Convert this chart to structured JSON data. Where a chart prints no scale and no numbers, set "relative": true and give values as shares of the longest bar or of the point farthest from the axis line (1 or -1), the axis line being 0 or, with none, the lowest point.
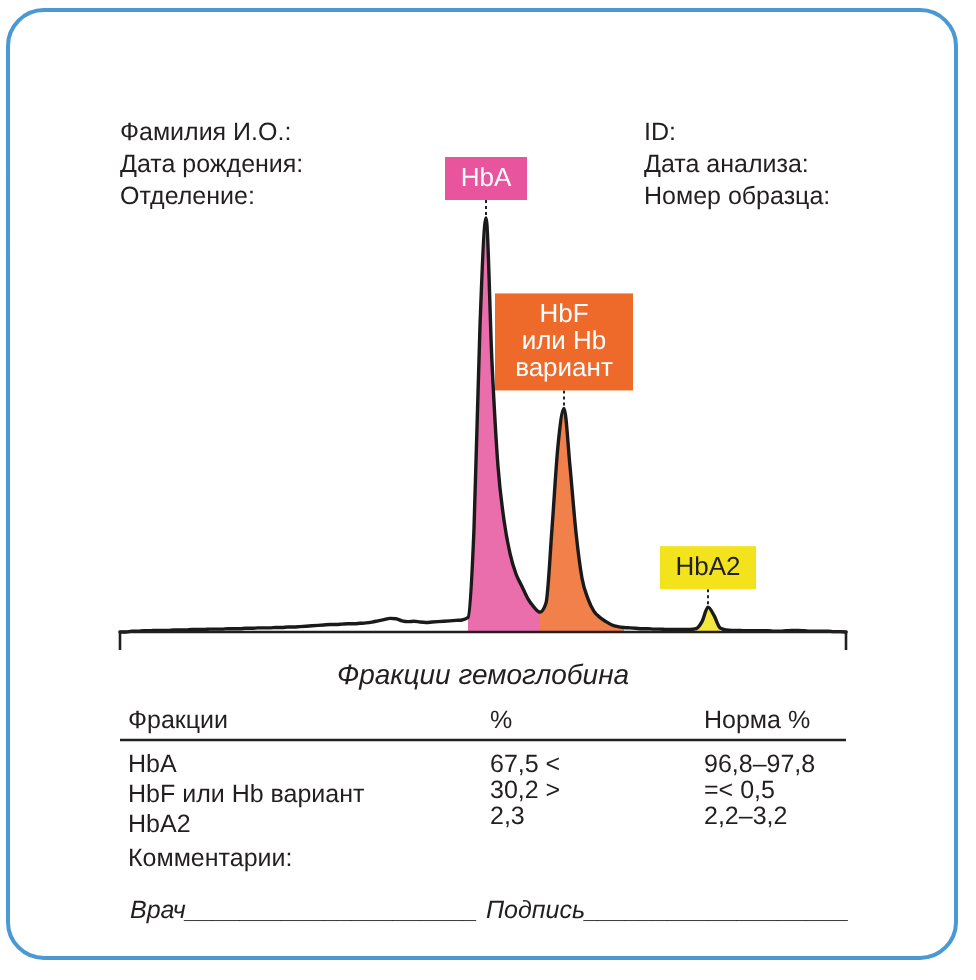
{
  "chart_data": {
    "type": "line",
    "relative": true,
    "categories": [
      null,
      null,
      null,
      null,
      null,
      null,
      null,
      null,
      null,
      null,
      null,
      null,
      null,
      null,
      null,
      null,
      null,
      null,
      null,
      null,
      null,
      null,
      null,
      null,
      null,
      null,
      null,
      null,
      null,
      null,
      null,
      null,
      null,
      null,
      null,
      null,
      null,
      null,
      null,
      null,
      null,
      null,
      null,
      null,
      null,
      null,
      null,
      null,
      null,
      null,
      null,
      null,
      null,
      null,
      null,
      null,
      null,
      null,
      null,
      null,
      null,
      null,
      null,
      null,
      null,
      null,
      null,
      null,
      null,
      null,
      null,
      null,
      null,
      null,
      null,
      null,
      null,
      null,
      null,
      null,
      null,
      null,
      null,
      null,
      null,
      null,
      null,
      null,
      null,
      null,
      null,
      null,
      null,
      null,
      null,
      null,
      null,
      null,
      null,
      null,
      null,
      null,
      null,
      null,
      null,
      null,
      null,
      null,
      null,
      null,
      null,
      null,
      null,
      null,
      null,
      null,
      null,
      null,
      null,
      null,
      null,
      null
    ],
    "series": [
      {
        "type": "area",
        "name": "HbA",
        "color": "#e8559e",
        "values": [
          null,
          null,
          null,
          null,
          null,
          null,
          null,
          null,
          null,
          null,
          null,
          null,
          null,
          null,
          null,
          null,
          null,
          null,
          null,
          null,
          null,
          null,
          null,
          null,
          null,
          null,
          null,
          null,
          null,
          null,
          null,
          null,
          null,
          null,
          null,
          null,
          null,
          null,
          null,
          null,
          null,
          null,
          null,
          null,
          null,
          null,
          null,
          null,
          null,
          null,
          null,
          null,
          null,
          null,
          null,
          null,
          null,
          null,
          0.035,
          0.25,
          0.74,
          1,
          0.65,
          0.4,
          0.27,
          0.19,
          0.14,
          0.11,
          0.08,
          0.06,
          0.048,
          null,
          null,
          null,
          null,
          null,
          null,
          null,
          null,
          null,
          null,
          null,
          null,
          null,
          null,
          null,
          null,
          null,
          null,
          null,
          null,
          null,
          null,
          null,
          null,
          null,
          null,
          null,
          null,
          null,
          null,
          null,
          null,
          null,
          null,
          null,
          null,
          null,
          null,
          null,
          null,
          null,
          null,
          null,
          null,
          null,
          null,
          null,
          null,
          null,
          null,
          null
        ]
      },
      {
        "type": "area",
        "name": "HbF или Hb вариант",
        "color": "#ee6a2a",
        "values": [
          null,
          null,
          null,
          null,
          null,
          null,
          null,
          null,
          null,
          null,
          null,
          null,
          null,
          null,
          null,
          null,
          null,
          null,
          null,
          null,
          null,
          null,
          null,
          null,
          null,
          null,
          null,
          null,
          null,
          null,
          null,
          null,
          null,
          null,
          null,
          null,
          null,
          null,
          null,
          null,
          null,
          null,
          null,
          null,
          null,
          null,
          null,
          null,
          null,
          null,
          null,
          null,
          null,
          null,
          null,
          null,
          null,
          null,
          null,
          null,
          null,
          null,
          null,
          null,
          null,
          null,
          null,
          null,
          null,
          null,
          0.048,
          0.07,
          0.25,
          0.45,
          0.54,
          0.4,
          0.24,
          0.13,
          0.08,
          0.05,
          0.035,
          0.025,
          0.017,
          0.013,
          0.011,
          null,
          null,
          null,
          null,
          null,
          null,
          null,
          null,
          null,
          null,
          null,
          null,
          null,
          null,
          null,
          null,
          null,
          null,
          null,
          null,
          null,
          null,
          null,
          null,
          null,
          null,
          null,
          null,
          null,
          null,
          null,
          null,
          null,
          null,
          null,
          null,
          null
        ]
      },
      {
        "type": "area",
        "name": "HbA2",
        "color": "#f2e31c",
        "values": [
          null,
          null,
          null,
          null,
          null,
          null,
          null,
          null,
          null,
          null,
          null,
          null,
          null,
          null,
          null,
          null,
          null,
          null,
          null,
          null,
          null,
          null,
          null,
          null,
          null,
          null,
          null,
          null,
          null,
          null,
          null,
          null,
          null,
          null,
          null,
          null,
          null,
          null,
          null,
          null,
          null,
          null,
          null,
          null,
          null,
          null,
          null,
          null,
          null,
          null,
          null,
          null,
          null,
          null,
          null,
          null,
          null,
          null,
          null,
          null,
          null,
          null,
          null,
          null,
          null,
          null,
          null,
          null,
          null,
          null,
          null,
          null,
          null,
          null,
          null,
          null,
          null,
          null,
          null,
          null,
          null,
          null,
          null,
          null,
          null,
          null,
          null,
          null,
          null,
          null,
          null,
          null,
          null,
          null,
          null,
          null,
          0.008,
          0.025,
          0.06,
          0.04,
          0.01,
          null,
          null,
          null,
          null,
          null,
          null,
          null,
          null,
          null,
          null,
          null,
          null,
          null,
          null,
          null,
          null,
          null,
          null,
          null,
          null,
          null
        ]
      },
      {
        "color": "#1a1a1a",
        "values": [
          0,
          0,
          0.002,
          0.002,
          0.003,
          0.003,
          0.004,
          0.004,
          0.004,
          0.005,
          0.005,
          0.005,
          0.006,
          0.006,
          0.006,
          0.007,
          0.007,
          0.007,
          0.008,
          0.008,
          0.008,
          0.009,
          0.009,
          0.01,
          0.01,
          0.01,
          0.011,
          0.011,
          0.012,
          0.012,
          0.013,
          0.014,
          0.015,
          0.016,
          0.017,
          0.018,
          0.018,
          0.019,
          0.02,
          0.02,
          0.021,
          0.022,
          0.024,
          0.027,
          0.03,
          0.033,
          0.032,
          0.027,
          0.025,
          0.026,
          0.024,
          0.023,
          0.024,
          0.025,
          0.026,
          0.027,
          0.028,
          0.029,
          0.035,
          0.25,
          0.74,
          1,
          0.65,
          0.4,
          0.27,
          0.19,
          0.14,
          0.11,
          0.08,
          0.06,
          0.048,
          0.07,
          0.25,
          0.45,
          0.54,
          0.4,
          0.24,
          0.13,
          0.08,
          0.05,
          0.035,
          0.025,
          0.017,
          0.013,
          0.011,
          0.01,
          0.009,
          0.008,
          0.008,
          0.007,
          0.007,
          0.006,
          0.006,
          0.006,
          0.006,
          0.006,
          0.008,
          0.025,
          0.06,
          0.04,
          0.01,
          0.005,
          0.004,
          0.004,
          0.003,
          0.003,
          0.003,
          0.003,
          0.003,
          0.002,
          0.002,
          0.003,
          0.004,
          0.004,
          0.003,
          0.002,
          0.002,
          0.002,
          0.002,
          0.001,
          0.001,
          0
        ]
      }
    ],
    "xlabel": "Фракции гемоглобина",
    "annotations": [
      "Фамилия И.О.:",
      "Дата рождения:",
      "Отделение:",
      "ID:",
      "Дата анализа:",
      "Номер образца:",
      "Фракции",
      "%",
      "Норма %",
      "HbA",
      "67,5 <",
      "96,8–97,8",
      "HbF или Hb вариант",
      "30,2 >",
      "=< 0,5",
      "HbA2",
      "2,3",
      "2,2–3,2",
      "Комментарии:",
      "Врач_____________________",
      "Подпись___________________"
    ]
  }
}
